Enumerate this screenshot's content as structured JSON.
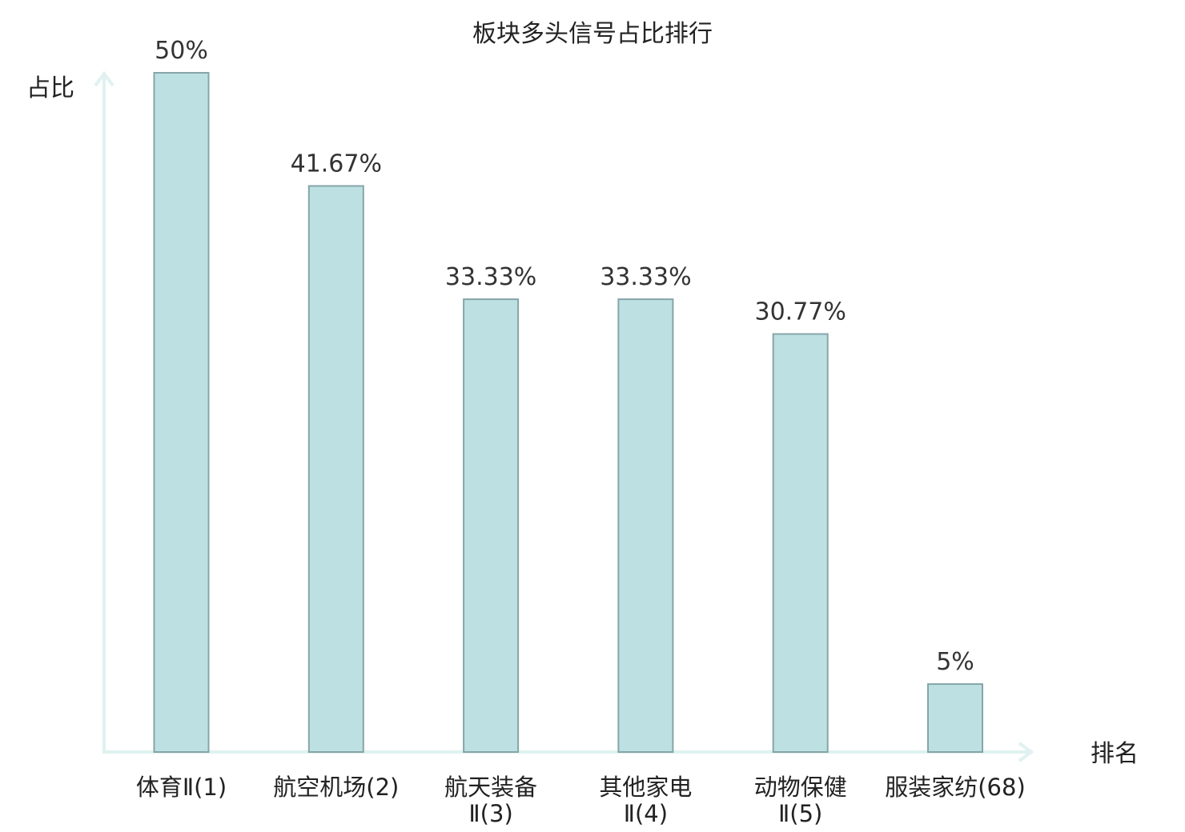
{
  "chart_data": {
    "type": "bar",
    "title": "板块多头信号占比排行",
    "ylabel": "占比",
    "xlabel": "排名",
    "ylim": [
      0,
      50
    ],
    "grid": false,
    "legend": "none",
    "categories": [
      {
        "name": "体育Ⅱ",
        "rank": "(1)",
        "lines": [
          "体育Ⅱ(1)"
        ],
        "highlight": false
      },
      {
        "name": "航空机场",
        "rank": "(2)",
        "lines": [
          "航空机场(2)"
        ],
        "highlight": false
      },
      {
        "name": "航天装备Ⅱ",
        "rank": "(3)",
        "lines": [
          "航天装备",
          "Ⅱ(3)"
        ],
        "highlight": false
      },
      {
        "name": "其他家电Ⅱ",
        "rank": "(4)",
        "lines": [
          "其他家电",
          "Ⅱ(4)"
        ],
        "highlight": false
      },
      {
        "name": "动物保健Ⅱ",
        "rank": "(5)",
        "lines": [
          "动物保健",
          "Ⅱ(5)"
        ],
        "highlight": false
      },
      {
        "name": "服装家纺",
        "rank": "(68)",
        "lines": [
          "服装家纺(68)"
        ],
        "highlight": true
      }
    ],
    "values": [
      50,
      41.67,
      33.33,
      33.33,
      30.77,
      5
    ],
    "value_labels": [
      "50%",
      "41.67%",
      "33.33%",
      "33.33%",
      "30.77%",
      "5%"
    ],
    "colors": {
      "bar_fill": "#bde1e3",
      "bar_stroke": "#86a5a8",
      "axis": "#dff2ef",
      "highlight_text": "#d9141b",
      "text": "#222222"
    }
  }
}
